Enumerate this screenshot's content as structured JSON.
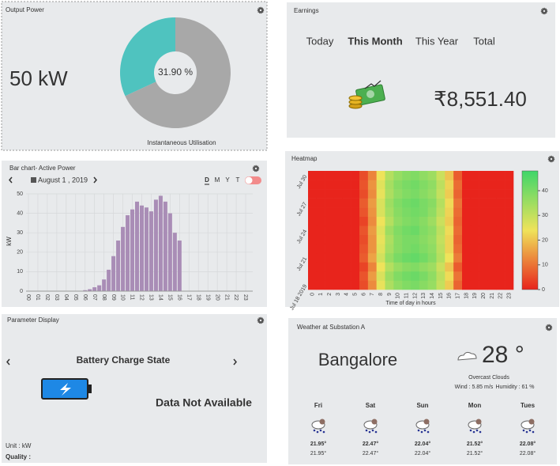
{
  "output_power": {
    "title": "Output Power",
    "value": "50 kW"
  },
  "earnings": {
    "title": "Earnings",
    "tabs": [
      "Today",
      "This Month",
      "This Year",
      "Total"
    ],
    "active_tab": 1,
    "amount": "₹8,551.40"
  },
  "bar_panel": {
    "title": "Bar chart- Active Power",
    "date": "August 1 , 2019",
    "periods": [
      "D",
      "M",
      "Y",
      "T"
    ],
    "active_period": 0
  },
  "heatmap_panel": {
    "title": "Heatmap"
  },
  "parameter": {
    "title": "Parameter Display",
    "label": "Battery Charge State",
    "status": "Data Not Available",
    "unit": "Unit : kW",
    "quality": "Quality :"
  },
  "weather": {
    "title": "Weather at Substation A",
    "city": "Bangalore",
    "temperature": "28 °",
    "condition": "Overcast Clouds",
    "wind": "Wind : 5.85 m/s",
    "humidity": "Humidity : 61 %",
    "forecast": [
      {
        "day": "Fri",
        "high": "21.95°",
        "low": "21.95°"
      },
      {
        "day": "Sat",
        "high": "22.47°",
        "low": "22.47°"
      },
      {
        "day": "Sun",
        "high": "22.04°",
        "low": "22.04°"
      },
      {
        "day": "Mon",
        "high": "21.52°",
        "low": "21.52°"
      },
      {
        "day": "Tues",
        "high": "22.08°",
        "low": "22.08°"
      }
    ]
  },
  "chart_data": [
    {
      "type": "pie",
      "values": [
        31.9,
        68.1
      ],
      "value_labels": [
        "31.90 %",
        null
      ],
      "colors": [
        "#4fc3bf",
        "#a8a8a8"
      ],
      "caption": "Instantaneous Utilisation"
    },
    {
      "type": "bar",
      "ylabel": "kW",
      "color": "#a98db6",
      "grid": true,
      "ylim": [
        0,
        50
      ],
      "yticks": [
        0,
        10,
        20,
        30,
        40,
        50
      ],
      "categories": [
        "00",
        null,
        "01",
        null,
        "02",
        null,
        "03",
        null,
        "04",
        null,
        "05",
        null,
        "06",
        null,
        "07",
        null,
        "08",
        null,
        "09",
        null,
        "10",
        null,
        "11",
        null,
        "12",
        null,
        "13",
        null,
        "14",
        null,
        "15",
        null,
        "16",
        null,
        "17",
        null,
        "18",
        null,
        "19",
        null,
        "20",
        null,
        "21",
        null,
        "22",
        null,
        "23",
        null
      ],
      "values": [
        0,
        0,
        0,
        0,
        0,
        0,
        0,
        0,
        0,
        0,
        0,
        0,
        0.5,
        1,
        2,
        3,
        6,
        11,
        18,
        26,
        33,
        39,
        42,
        46,
        44,
        43,
        41,
        47,
        49,
        46,
        40,
        30,
        26,
        0,
        0,
        0,
        0,
        0,
        0,
        0,
        0,
        0,
        0,
        0,
        0,
        0,
        0,
        0
      ]
    },
    {
      "type": "heatmap",
      "xlabel": "Time of day in hours",
      "x": [
        0,
        1,
        2,
        3,
        4,
        5,
        6,
        7,
        8,
        9,
        10,
        11,
        12,
        13,
        14,
        15,
        16,
        17,
        18,
        19,
        20,
        21,
        22,
        23
      ],
      "y": [
        "Jul 18 2019",
        null,
        null,
        "Jul 21",
        null,
        null,
        "Jul 24",
        null,
        null,
        "Jul 27",
        null,
        null,
        "Jul 30"
      ],
      "zlim": [
        0,
        48
      ],
      "zticks": [
        0,
        10,
        20,
        30,
        40
      ],
      "colorscale": [
        "#e8241c",
        "#efe35a",
        "#3fd66a"
      ],
      "z": [
        [
          0,
          0,
          0,
          0,
          0,
          0,
          5,
          13,
          25,
          33,
          37,
          39,
          40,
          38,
          36,
          30,
          21,
          8,
          0,
          0,
          0,
          0,
          0,
          0
        ],
        [
          0,
          0,
          0,
          0,
          0,
          0,
          6,
          15,
          27,
          35,
          39,
          41,
          42,
          40,
          37,
          31,
          23,
          10,
          0,
          0,
          0,
          0,
          0,
          0
        ],
        [
          0,
          0,
          0,
          0,
          0,
          0,
          4,
          12,
          24,
          32,
          36,
          38,
          39,
          37,
          35,
          29,
          20,
          7,
          0,
          0,
          0,
          0,
          0,
          0
        ],
        [
          0,
          0,
          0,
          0,
          0,
          0,
          7,
          16,
          28,
          36,
          40,
          42,
          43,
          41,
          38,
          32,
          24,
          11,
          0,
          0,
          0,
          0,
          0,
          0
        ],
        [
          0,
          0,
          0,
          0,
          0,
          0,
          6,
          14,
          26,
          34,
          38,
          40,
          41,
          39,
          37,
          31,
          22,
          9,
          0,
          0,
          0,
          0,
          0,
          0
        ],
        [
          0,
          0,
          0,
          0,
          0,
          0,
          5,
          14,
          25,
          33,
          38,
          40,
          40,
          38,
          36,
          30,
          22,
          8,
          0,
          0,
          0,
          0,
          0,
          0
        ],
        [
          0,
          0,
          0,
          0,
          0,
          0,
          6,
          15,
          26,
          35,
          39,
          41,
          42,
          39,
          37,
          31,
          23,
          9,
          0,
          0,
          0,
          0,
          0,
          0
        ],
        [
          0,
          0,
          0,
          0,
          0,
          0,
          4,
          13,
          24,
          32,
          37,
          39,
          40,
          38,
          35,
          29,
          21,
          8,
          0,
          0,
          0,
          0,
          0,
          0
        ],
        [
          0,
          0,
          0,
          0,
          0,
          0,
          6,
          14,
          27,
          34,
          38,
          40,
          41,
          40,
          37,
          31,
          22,
          9,
          0,
          0,
          0,
          0,
          0,
          0
        ],
        [
          0,
          0,
          0,
          0,
          0,
          0,
          7,
          15,
          27,
          35,
          39,
          41,
          42,
          40,
          38,
          32,
          23,
          10,
          0,
          0,
          0,
          0,
          0,
          0
        ],
        [
          0,
          0,
          0,
          0,
          0,
          0,
          5,
          13,
          25,
          33,
          37,
          39,
          40,
          38,
          36,
          30,
          21,
          8,
          0,
          0,
          0,
          0,
          0,
          0
        ],
        [
          0,
          0,
          0,
          0,
          0,
          0,
          6,
          14,
          26,
          34,
          38,
          40,
          41,
          39,
          37,
          31,
          22,
          9,
          0,
          0,
          0,
          0,
          0,
          0
        ],
        [
          0,
          0,
          0,
          0,
          0,
          0,
          5,
          12,
          24,
          32,
          36,
          38,
          39,
          37,
          35,
          29,
          20,
          7,
          0,
          0,
          0,
          0,
          0,
          0
        ]
      ]
    }
  ]
}
